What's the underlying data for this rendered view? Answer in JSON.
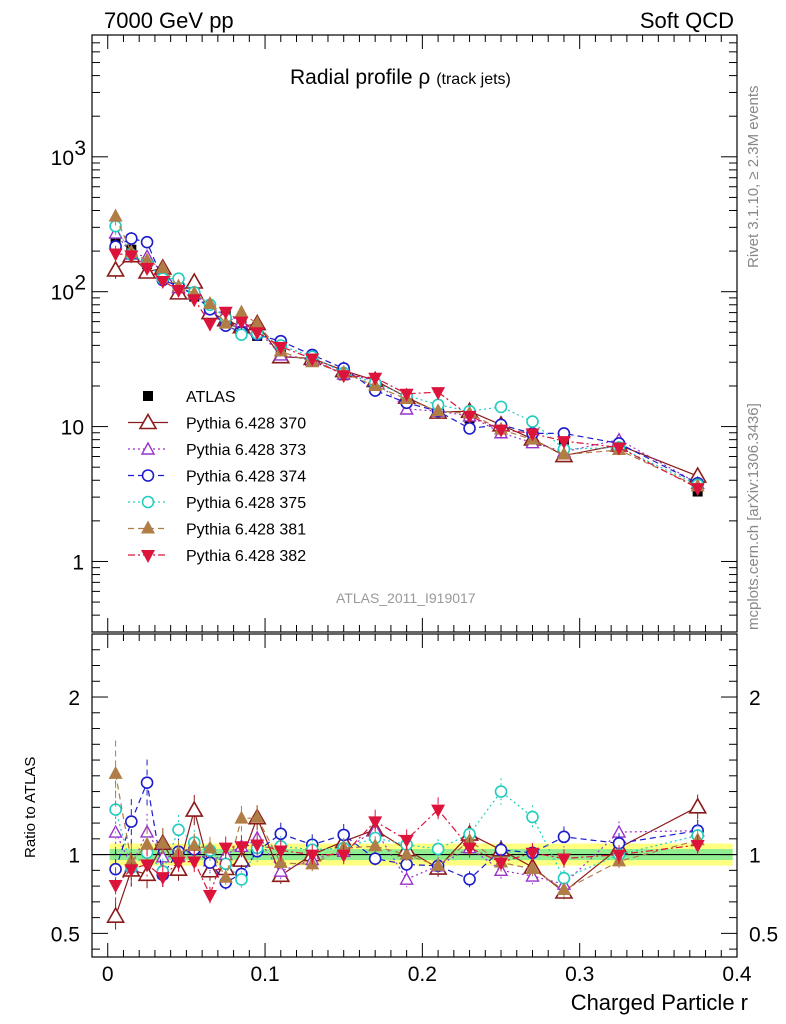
{
  "header": {
    "left": "7000 GeV pp",
    "right": "Soft QCD"
  },
  "side": {
    "rivet": "Rivet 3.1.10, ≥ 2.3M events",
    "mcplots": "mcplots.cern.ch [arXiv:1306.3436]"
  },
  "title": {
    "main": "Radial profile ρ",
    "sub": "(track jets)"
  },
  "analysis_label": "ATLAS_2011_I919017",
  "ratio_panel": {
    "ylabel": "Ratio to ATLAS",
    "ylim": [
      0.35,
      2.4
    ],
    "yticks": [
      0.5,
      1,
      2
    ],
    "ytick_labels": [
      "0.5",
      "1",
      "2"
    ]
  },
  "colors": {
    "ATLAS": "#000000",
    "Pythia 6.428 370": "#8b1a1a",
    "Pythia 6.428 373": "#9932cc",
    "Pythia 6.428 374": "#1c1ccc",
    "Pythia 6.428 375": "#22cdbe",
    "Pythia 6.428 381": "#b07d46",
    "Pythia 6.428 382": "#dc143c",
    "band_inner": "#90ee90",
    "band_outer": "#ffff80"
  },
  "chart_data": {
    "type": "scatter",
    "title": "Radial profile ρ (track jets)",
    "xlabel": "Charged Particle r",
    "ylabel": "",
    "xlim": [
      -0.01,
      0.4
    ],
    "ylim": [
      0.3,
      8000
    ],
    "yscale": "log",
    "grid": false,
    "legend_position": "bottom-left",
    "xticks": [
      0,
      0.1,
      0.2,
      0.3,
      0.4
    ],
    "xtick_labels": [
      "0",
      "0.1",
      "0.2",
      "0.3",
      "0.4"
    ],
    "yticks": [
      1,
      10,
      100,
      1000
    ],
    "ytick_labels": [
      "1",
      "10",
      "10^2",
      "10^3"
    ],
    "x": [
      0.005,
      0.015,
      0.025,
      0.035,
      0.045,
      0.055,
      0.065,
      0.075,
      0.085,
      0.095,
      0.11,
      0.13,
      0.15,
      0.17,
      0.19,
      0.21,
      0.23,
      0.25,
      0.27,
      0.29,
      0.325,
      0.375
    ],
    "series": [
      {
        "name": "ATLAS",
        "marker": "square",
        "values": [
          238,
          205,
          160,
          140,
          108,
          92,
          78,
          68,
          57,
          47,
          38,
          32,
          24,
          19,
          16,
          14,
          11.5,
          10,
          8.8,
          8,
          7,
          3.3
        ]
      },
      {
        "name": "Pythia 6.428 370",
        "marker": "triangle-up-open",
        "dash": "solid",
        "values": [
          145,
          185,
          140,
          150,
          98,
          118,
          70,
          62,
          55,
          58,
          33,
          32,
          26,
          22,
          16.5,
          12.8,
          13,
          10.3,
          8.1,
          6.1,
          7.3,
          4.3
        ]
      },
      {
        "name": "Pythia 6.428 373",
        "marker": "triangle-down-open-small",
        "dash": "dotted",
        "values": [
          272,
          190,
          183,
          138,
          107,
          96,
          75,
          68,
          60,
          52,
          34,
          31,
          24.5,
          22,
          13.5,
          13,
          12,
          9,
          7.6,
          6.5,
          8,
          3.8
        ]
      },
      {
        "name": "Pythia 6.428 374",
        "marker": "circle-open",
        "dash": "dashed",
        "values": [
          216,
          248,
          233,
          122,
          110,
          95,
          74,
          56,
          50,
          48,
          43,
          34,
          27,
          18.5,
          15,
          13,
          9.7,
          10.3,
          8.9,
          8.9,
          7.5,
          3.8
        ]
      },
      {
        "name": "Pythia 6.428 375",
        "marker": "circle-open",
        "dash": "dotted",
        "values": [
          306,
          188,
          162,
          125,
          125,
          99,
          80,
          64,
          48,
          49,
          40,
          33,
          25,
          21,
          17,
          14.5,
          13,
          14,
          10.9,
          6.8,
          7,
          3.7
        ]
      },
      {
        "name": "Pythia 6.428 381",
        "marker": "triangle-up-filled",
        "dash": "dashed",
        "values": [
          360,
          196,
          170,
          150,
          109,
          97,
          81,
          58,
          70,
          58,
          36,
          30,
          25,
          20,
          16,
          13,
          12.5,
          9.5,
          8,
          6.2,
          6.7,
          3.6
        ]
      },
      {
        "name": "Pythia 6.428 382",
        "marker": "triangle-down-filled",
        "dash": "dashdot",
        "values": [
          192,
          186,
          150,
          120,
          103,
          88,
          58,
          71,
          60,
          50,
          39,
          32,
          24,
          23,
          17.5,
          18,
          12,
          9.5,
          8.9,
          7.8,
          7,
          3.5
        ]
      }
    ]
  }
}
